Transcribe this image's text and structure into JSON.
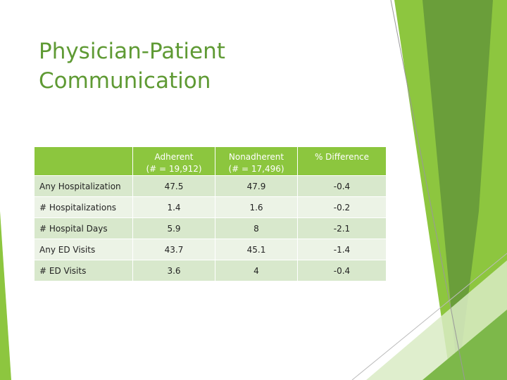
{
  "header": {
    "title_lines": [
      "Physician-Patient",
      "Communication"
    ]
  },
  "table": {
    "columns": [
      "",
      "Adherent",
      "Nonadherent",
      "% Difference"
    ],
    "column_notes": [
      null,
      "(# = 19,912)",
      "(# = 17,496)",
      null
    ],
    "rows": [
      [
        "Any Hospitalization",
        47.5,
        47.9,
        -0.4
      ],
      [
        "# Hospitalizations",
        1.4,
        1.6,
        -0.2
      ],
      [
        "# Hospital Days",
        5.9,
        8,
        -2.1
      ],
      [
        "Any ED Visits",
        43.7,
        45.1,
        -1.4
      ],
      [
        "# ED Visits",
        3.6,
        4,
        -0.4
      ]
    ]
  }
}
